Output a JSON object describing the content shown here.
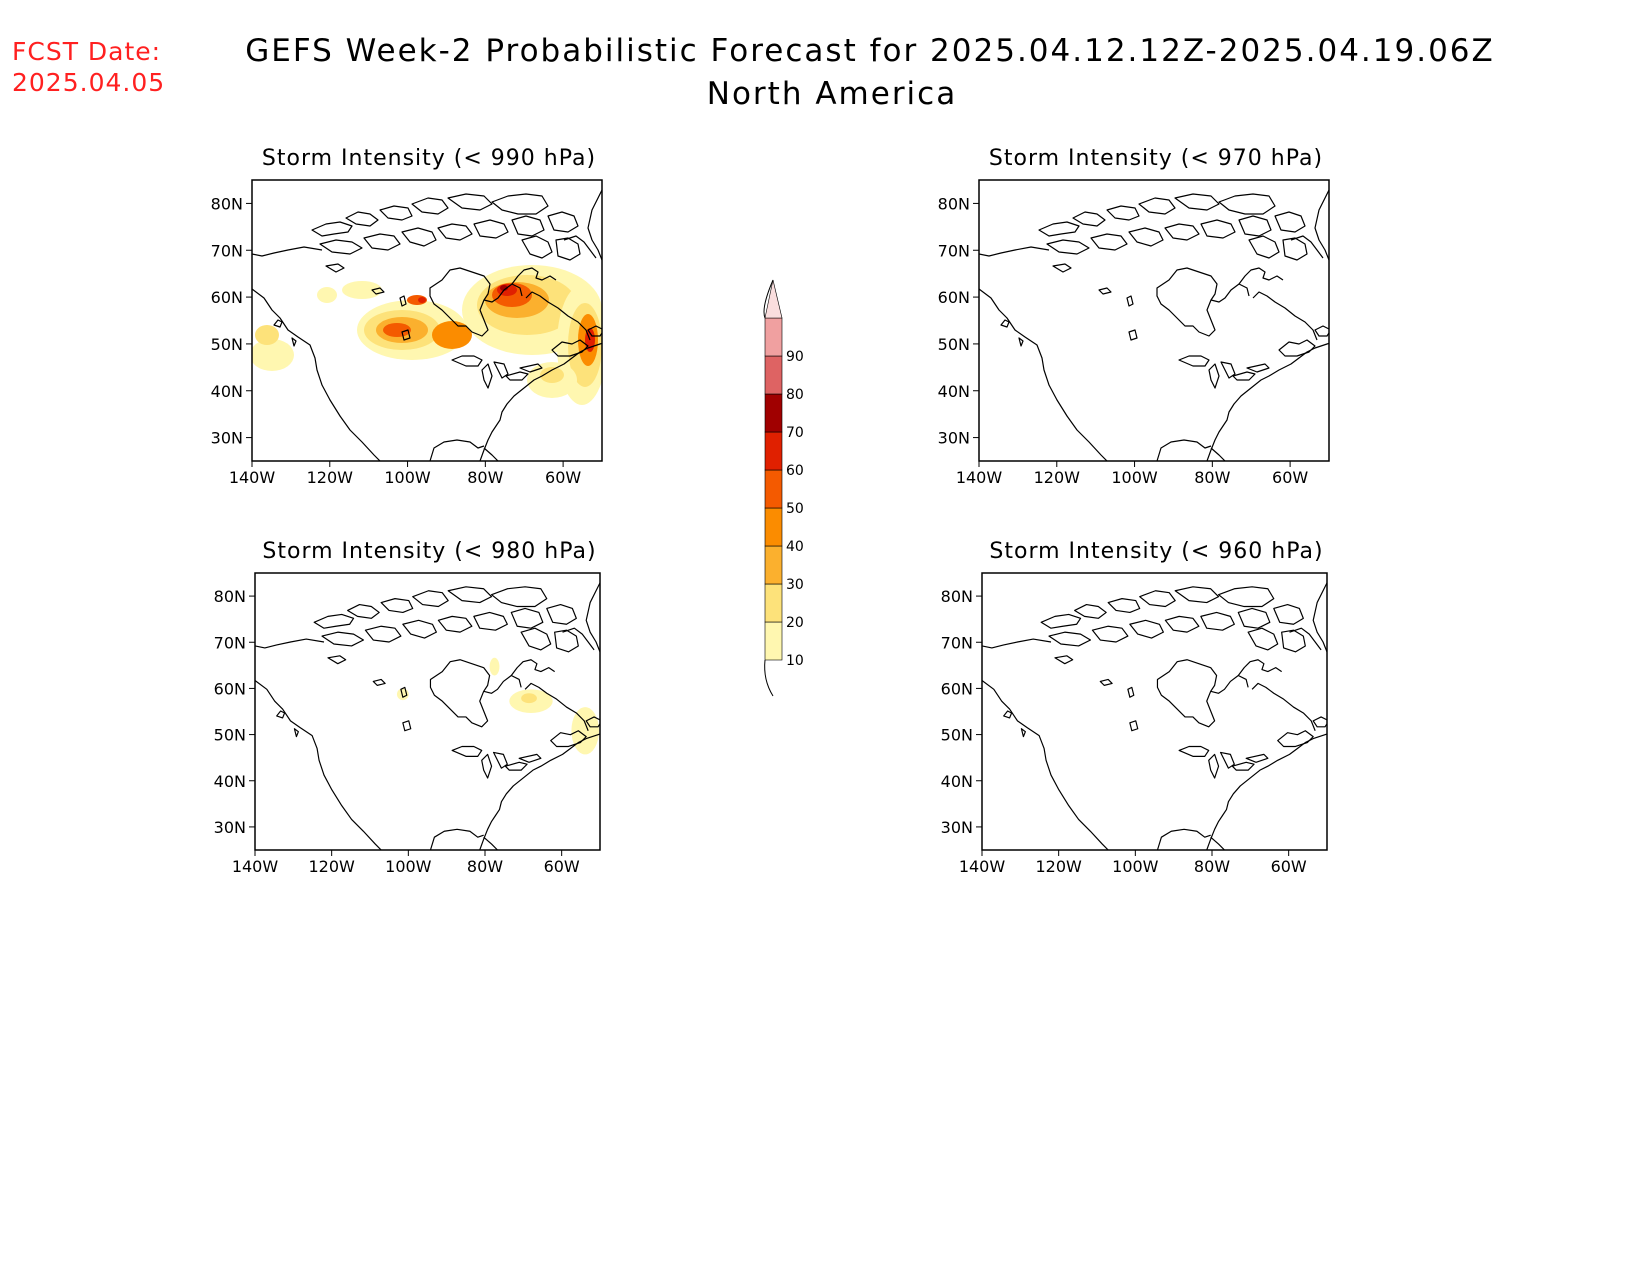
{
  "forecast_date": {
    "label": "FCST Date:",
    "value": "2025.04.05"
  },
  "title": {
    "line1": "GEFS Week-2 Probabilistic Forecast for 2025.04.12.12Z-2025.04.19.06Z",
    "line2": "North America"
  },
  "map_extent": {
    "lon_range": [
      -140,
      -50
    ],
    "lat_range": [
      25,
      85
    ]
  },
  "lat_ticks": [
    "80N",
    "70N",
    "60N",
    "50N",
    "40N",
    "30N"
  ],
  "lat_tick_values": [
    80,
    70,
    60,
    50,
    40,
    30
  ],
  "lon_ticks": [
    "140W",
    "120W",
    "100W",
    "80W",
    "60W"
  ],
  "lon_tick_values": [
    -140,
    -120,
    -100,
    -80,
    -60
  ],
  "panels": [
    {
      "title": "Storm Intensity (< 990 hPa)",
      "threshold_hPa": 990
    },
    {
      "title": "Storm Intensity (< 970 hPa)",
      "threshold_hPa": 970
    },
    {
      "title": "Storm Intensity (< 980 hPa)",
      "threshold_hPa": 980
    },
    {
      "title": "Storm Intensity (< 960 hPa)",
      "threshold_hPa": 960
    }
  ],
  "colorbar": {
    "labels": [
      "10",
      "20",
      "30",
      "40",
      "50",
      "60",
      "70",
      "80",
      "90"
    ],
    "colors": [
      "#fff7b0",
      "#fde27a",
      "#fbb02e",
      "#fb8c00",
      "#f45a00",
      "#e02000",
      "#a00000",
      "#de6363",
      "#f0a0a0",
      "#fadede"
    ]
  },
  "colors": {
    "date_text": "#ff2020",
    "coast": "#000000"
  }
}
